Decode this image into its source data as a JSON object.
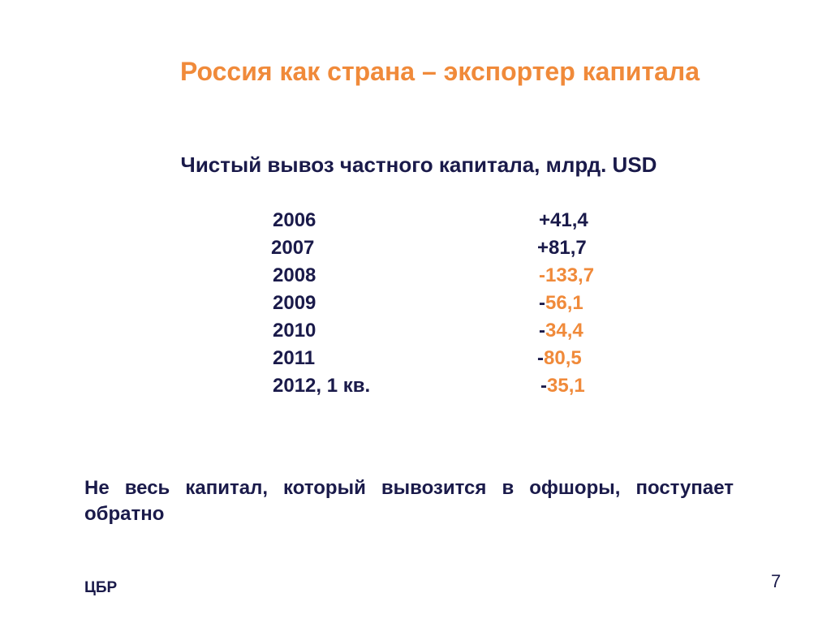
{
  "slide": {
    "title": "Россия как страна – экспортер капитала",
    "subtitle": "Чистый вывоз частного капитала, млрд. USD",
    "rows": [
      {
        "year": "2006",
        "sign": "+",
        "value": "41,4",
        "negative": false
      },
      {
        "year": "2007",
        "sign": "+",
        "value": "81,7",
        "negative": false
      },
      {
        "year": "2008",
        "sign": "-",
        "value": "133,7",
        "negative": true
      },
      {
        "year": "2009",
        "sign": "-",
        "value": "56,1",
        "negative": true
      },
      {
        "year": "2010",
        "sign": "-",
        "value": "34,4",
        "negative": true
      },
      {
        "year": "2011",
        "sign": "-",
        "value": "80,5",
        "negative": true
      },
      {
        "year": "2012, 1 кв.",
        "sign": "-",
        "value": "35,1",
        "negative": true
      }
    ],
    "note": "Не весь капитал, который вывозится в офшоры, поступает обратно",
    "source": "ЦБР",
    "page_number": "7"
  },
  "colors": {
    "accent": "#f08a3a",
    "text": "#1a1a4a",
    "background": "#ffffff"
  }
}
